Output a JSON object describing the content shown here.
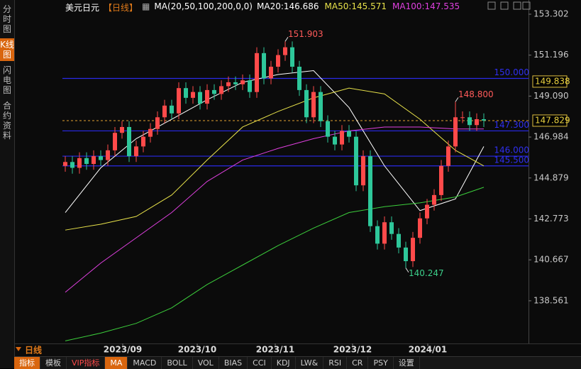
{
  "header": {
    "symbol": "美元日元",
    "period": "【日线】",
    "ma_params": "MA(20,50,100,200,0,0)"
  },
  "sidebar": [
    "分时图",
    "K线图",
    "闪电图",
    "合约资料"
  ],
  "period_label": "日线",
  "toolbar": [
    "指标",
    "模板",
    "VIP指标",
    "MA",
    "MACD",
    "BOLL",
    "VOL",
    "BIAS",
    "CCI",
    "KDJ",
    "LW&",
    "RSI",
    "CR",
    "PSY",
    "设置"
  ],
  "chart_data": {
    "type": "candlestick",
    "up_color": "#ff4a4a",
    "down_color": "#2ec79a",
    "open": [
      145.5,
      145.7,
      145.4,
      145.9,
      145.6,
      146.0,
      145.8,
      146.3,
      147.2,
      147.5,
      146.0,
      146.5,
      147.0,
      147.4,
      148.0,
      148.6,
      148.2,
      149.5,
      149.0,
      149.3,
      148.7,
      149.4,
      149.2,
      149.6,
      149.8,
      149.7,
      149.9,
      149.3,
      151.3,
      150.0,
      150.6,
      151.2,
      151.6,
      150.6,
      149.4,
      148.0,
      149.3,
      147.8,
      147.0,
      146.6,
      147.3,
      147.0,
      144.5,
      146.0,
      142.4,
      141.5,
      142.6,
      142.0,
      141.3,
      140.6,
      141.8,
      142.8,
      143.5,
      144.0,
      145.5,
      146.5,
      148.0,
      148.0,
      147.6,
      147.9
    ],
    "high": [
      146.0,
      146.0,
      146.2,
      146.2,
      146.3,
      146.3,
      146.6,
      147.5,
      147.8,
      147.8,
      146.8,
      147.3,
      147.7,
      148.3,
      148.9,
      148.9,
      149.8,
      149.8,
      149.6,
      149.6,
      149.7,
      149.7,
      149.9,
      150.1,
      150.1,
      150.2,
      150.2,
      151.6,
      151.6,
      150.9,
      151.5,
      151.903,
      151.9,
      150.9,
      149.7,
      149.6,
      149.6,
      148.1,
      147.3,
      147.6,
      147.6,
      147.3,
      146.3,
      146.3,
      142.7,
      142.9,
      142.9,
      142.3,
      141.6,
      142.1,
      143.1,
      143.8,
      144.3,
      145.8,
      146.8,
      148.8,
      148.3,
      148.3,
      148.2,
      148.2
    ],
    "low": [
      145.2,
      145.1,
      145.1,
      145.3,
      145.3,
      145.5,
      145.5,
      146.0,
      146.9,
      145.7,
      145.7,
      146.2,
      146.7,
      147.1,
      147.7,
      147.9,
      147.9,
      148.7,
      148.7,
      148.4,
      148.4,
      148.9,
      148.9,
      149.3,
      149.4,
      149.4,
      149.0,
      149.0,
      149.7,
      149.7,
      150.3,
      150.9,
      150.3,
      149.1,
      147.7,
      147.7,
      147.5,
      146.7,
      146.3,
      146.3,
      146.7,
      144.2,
      144.2,
      142.1,
      141.2,
      141.2,
      141.7,
      141.0,
      140.247,
      140.3,
      141.5,
      142.5,
      143.2,
      143.7,
      145.2,
      146.2,
      147.7,
      147.3,
      147.3,
      147.5
    ],
    "close": [
      145.7,
      145.4,
      145.9,
      145.6,
      146.0,
      145.8,
      146.3,
      147.2,
      147.5,
      146.0,
      146.5,
      147.0,
      147.4,
      148.0,
      148.6,
      148.2,
      149.5,
      149.0,
      149.3,
      148.7,
      149.4,
      149.2,
      149.6,
      149.8,
      149.7,
      149.9,
      149.3,
      151.3,
      150.0,
      150.6,
      151.2,
      151.6,
      150.6,
      149.4,
      148.0,
      149.3,
      147.8,
      147.0,
      146.6,
      147.3,
      147.0,
      144.5,
      146.0,
      142.4,
      141.5,
      142.6,
      142.0,
      141.3,
      140.6,
      141.8,
      142.8,
      143.5,
      144.0,
      145.5,
      146.5,
      148.0,
      148.0,
      147.6,
      147.9,
      147.83
    ],
    "xlim": [
      -0.4,
      65.3
    ],
    "xticks": [
      {
        "value": 8.1,
        "label": "2023/09"
      },
      {
        "value": 18.6,
        "label": "2023/10"
      },
      {
        "value": 29.6,
        "label": "2023/11"
      },
      {
        "value": 40.5,
        "label": "2023/12"
      },
      {
        "value": 51.1,
        "label": "2024/01"
      }
    ],
    "ylim": [
      136.44,
      153.302
    ],
    "yticks": [
      153.302,
      151.196,
      {
        "value": 149.09,
        "label": "149.090"
      },
      146.984,
      144.879,
      142.773,
      140.667,
      138.561
    ],
    "series": [
      {
        "name": "MA20:146.686",
        "color": "#ffffff",
        "x": [
          0,
          5,
          10,
          15,
          20,
          25,
          30,
          35,
          40,
          45,
          50,
          55,
          59
        ],
        "values": [
          143.1,
          145.4,
          146.9,
          147.9,
          148.9,
          149.8,
          150.2,
          150.4,
          148.5,
          145.5,
          143.2,
          143.8,
          146.5
        ]
      },
      {
        "name": "MA50:145.571",
        "color": "#e8e24a",
        "x": [
          0,
          5,
          10,
          15,
          20,
          25,
          30,
          35,
          40,
          45,
          50,
          55,
          59
        ],
        "values": [
          142.2,
          142.5,
          142.9,
          144.0,
          145.8,
          147.5,
          148.3,
          149.0,
          149.5,
          149.2,
          147.9,
          146.3,
          145.5
        ]
      },
      {
        "name": "MA100:147.535",
        "color": "#e040e0",
        "x": [
          0,
          5,
          10,
          15,
          20,
          25,
          30,
          35,
          40,
          45,
          50,
          55,
          59
        ],
        "values": [
          139.0,
          140.5,
          141.8,
          143.1,
          144.7,
          145.8,
          146.4,
          146.9,
          147.3,
          147.5,
          147.5,
          147.4,
          147.4
        ]
      },
      {
        "color": "#3ccf3c",
        "x": [
          0,
          5,
          10,
          15,
          20,
          25,
          30,
          35,
          40,
          45,
          50,
          55,
          59
        ],
        "values": [
          136.5,
          136.9,
          137.4,
          138.2,
          139.4,
          140.4,
          141.4,
          142.3,
          143.1,
          143.4,
          143.6,
          143.9,
          144.4
        ]
      }
    ],
    "levels_color": "#2a2ae8",
    "levels": [
      {
        "value": 150,
        "label": "150.000"
      },
      {
        "value": 147.3,
        "label": "147.300"
      },
      {
        "value": 146,
        "label": "146.000"
      },
      {
        "value": 145.5,
        "label": "145.500"
      }
    ],
    "last_price": {
      "value": 147.829,
      "label": "147.829"
    },
    "marker_price": {
      "value": 149.838,
      "label": "149.838"
    },
    "annotations": [
      {
        "x": 31,
        "value": 151.903,
        "label": "151.903",
        "color": "#ff5a5a"
      },
      {
        "x": 55,
        "value": 148.8,
        "label": "148.800",
        "color": "#ff5a5a"
      },
      {
        "x": 48,
        "value": 140.247,
        "label": "140.247",
        "color": "#3ccf8a"
      }
    ]
  }
}
